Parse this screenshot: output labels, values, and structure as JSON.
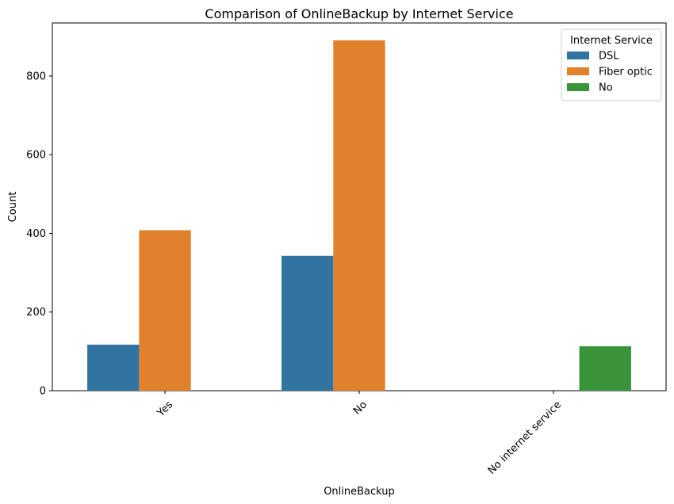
{
  "chart_data": {
    "type": "bar",
    "title": "Comparison of OnlineBackup by Internet Service",
    "xlabel": "OnlineBackup",
    "ylabel": "Count",
    "categories": [
      "Yes",
      "No",
      "No internet service"
    ],
    "series": [
      {
        "name": "DSL",
        "color": "#3274a1",
        "values": [
          117,
          343,
          0
        ]
      },
      {
        "name": "Fiber optic",
        "color": "#e1812c",
        "values": [
          408,
          891,
          0
        ]
      },
      {
        "name": "No",
        "color": "#3a923a",
        "values": [
          0,
          0,
          113
        ]
      }
    ],
    "ylim": [
      0,
      935
    ],
    "yticks": [
      0,
      200,
      400,
      600,
      800
    ],
    "legend": {
      "title": "Internet Service",
      "placement": "top-right"
    },
    "grid": false,
    "x_tick_rotation": 45
  }
}
